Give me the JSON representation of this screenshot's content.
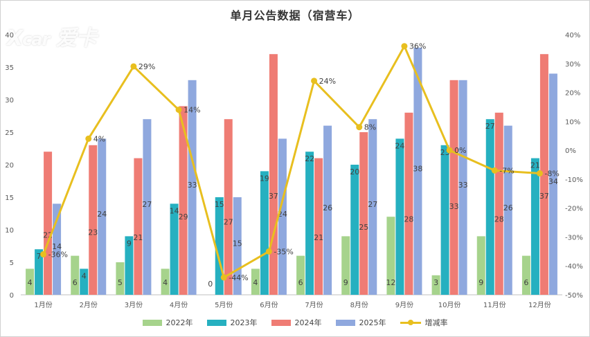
{
  "chart_data": {
    "type": "bar",
    "title": "单月公告数据（宿营车）",
    "categories": [
      "1月份",
      "2月份",
      "3月份",
      "4月份",
      "5月份",
      "6月份",
      "7月份",
      "8月份",
      "9月份",
      "10月份",
      "11月份",
      "12月份"
    ],
    "series": [
      {
        "name": "2022年",
        "color": "#a6d38c",
        "values": [
          4,
          6,
          5,
          4,
          0,
          4,
          6,
          9,
          12,
          3,
          9,
          6
        ]
      },
      {
        "name": "2023年",
        "color": "#26b0c0",
        "values": [
          7,
          4,
          9,
          14,
          15,
          19,
          22,
          20,
          24,
          23,
          27,
          21
        ]
      },
      {
        "name": "2024年",
        "color": "#ef7c74",
        "values": [
          22,
          23,
          21,
          29,
          27,
          37,
          21,
          25,
          28,
          33,
          28,
          37
        ]
      },
      {
        "name": "2025年",
        "color": "#8fa8de",
        "values": [
          14,
          24,
          27,
          33,
          15,
          24,
          26,
          27,
          38,
          33,
          26,
          34
        ]
      }
    ],
    "line_series": {
      "name": "增减率",
      "color": "#e8bf1f",
      "values": [
        -36,
        4,
        29,
        14,
        -44,
        -35,
        24,
        8,
        36,
        0,
        -7,
        -8
      ],
      "labels": [
        "-36%",
        "4%",
        "29%",
        "14%",
        "-44%",
        "-35%",
        "24%",
        "8%",
        "36%",
        "0%",
        "-7%",
        "-8%"
      ]
    },
    "ylim": [
      0,
      40
    ],
    "yticks": [
      "0",
      "5",
      "10",
      "15",
      "20",
      "25",
      "30",
      "35",
      "40"
    ],
    "y2lim": [
      -50,
      40
    ],
    "y2ticks": [
      "-50%",
      "-40%",
      "-30%",
      "-20%",
      "-10%",
      "0%",
      "10%",
      "20%",
      "30%",
      "40%"
    ],
    "grid": false,
    "legend": "bottom"
  },
  "watermark": "Xcar 爱卡"
}
